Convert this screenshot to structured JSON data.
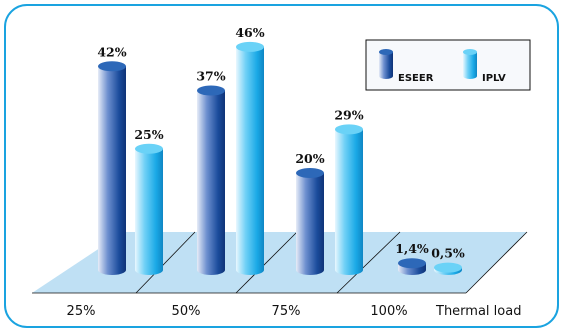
{
  "chart_data": {
    "type": "bar",
    "style": "3d-cylinder",
    "categories": [
      "25%",
      "50%",
      "75%",
      "100%"
    ],
    "xlabel": "Thermal load",
    "ylabel": "",
    "title": "",
    "ylim": [
      0,
      46
    ],
    "grid": false,
    "legend": "top-right",
    "series": [
      {
        "name": "ESEER",
        "values": [
          42,
          37,
          20,
          1.4
        ],
        "labels": [
          "42%",
          "37%",
          "20%",
          "1,4%"
        ],
        "color": "#1a56a6"
      },
      {
        "name": "IPLV",
        "values": [
          25,
          46,
          29,
          0.5
        ],
        "labels": [
          "25%",
          "46%",
          "29%",
          "0,5%"
        ],
        "color": "#20b2ec"
      }
    ],
    "colors": {
      "frame": "#1aa3e0",
      "floor": "#bfe0f4"
    }
  }
}
